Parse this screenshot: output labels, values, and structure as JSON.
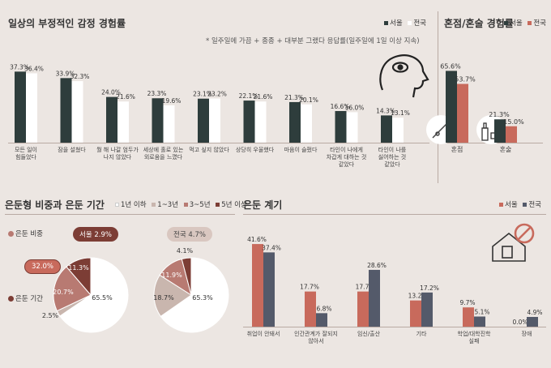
{
  "colors": {
    "dark": "#2e3d3c",
    "white": "#ffffff",
    "red": "#c86a5c",
    "navy": "#545a6a",
    "maroon": "#7c3d35",
    "rose": "#b87a72",
    "beige": "#c9b6ae",
    "tick": "#b9aaa3"
  },
  "icons": [
    "head-icon",
    "needle-icon",
    "bottle-icon",
    "house-icon",
    "ban-icon"
  ],
  "emotion": {
    "title": "일상의 부정적인 감정 경험률",
    "legend": [
      "서울",
      "전국"
    ],
    "note": "* 일주일에 가끔 + 종종 + 대부분 그랬다 응답률(일주일에 1일 이상 지속)"
  },
  "honjeom": {
    "title": "혼점/혼술 경험률",
    "legend": [
      "서울",
      "전국"
    ]
  },
  "hermit": {
    "title": "은둔형 비중과 은둔 기간",
    "legend": [
      "1년 이하",
      "1~3년",
      "3~5년",
      "5년 이상"
    ],
    "label_ratio": "은둔 비중",
    "label_period": "은둔 기간",
    "seoul_bubble": "서울 2.9%",
    "national_bubble": "전국 4.7%",
    "seoul_side": "32.0%"
  },
  "reason": {
    "title": "은둔 계기",
    "legend": [
      "서울",
      "전국"
    ]
  },
  "chart_data": [
    {
      "type": "bar",
      "title": "일상의 부정적인 감정 경험률",
      "categories": [
        "모든 일이\n힘들었다",
        "잠을 설쳤다",
        "뭘 해 나갈 엄두가\n나지 않았다",
        "세상에 홀로 있는\n외로움을 느꼈다",
        "먹고 싶지 않았다",
        "상당히 우울했다",
        "마음이 슬펐다",
        "타인이 나에게\n차갑게 대하는 것\n같았다",
        "타인이 나를\n싫어하는 것\n같았다"
      ],
      "series": [
        {
          "name": "서울",
          "values": [
            37.3,
            33.9,
            24.0,
            23.3,
            23.1,
            22.1,
            21.3,
            16.6,
            14.3
          ]
        },
        {
          "name": "전국",
          "values": [
            36.4,
            32.3,
            21.6,
            19.6,
            23.2,
            21.6,
            20.1,
            16.0,
            13.1
          ]
        }
      ],
      "labels": [
        [
          "37.3%",
          "36.4%"
        ],
        [
          "33.9%",
          "32.3%"
        ],
        [
          "24.0%",
          "21.6%"
        ],
        [
          "23.3%",
          "19.6%"
        ],
        [
          "23.1%",
          "23.2%"
        ],
        [
          "22.1%",
          "21.6%"
        ],
        [
          "21.3%",
          "20.1%"
        ],
        [
          "16.6%",
          "16.0%"
        ],
        [
          "14.3%",
          "13.1%"
        ]
      ]
    },
    {
      "type": "bar",
      "title": "혼점/혼술 경험률",
      "categories": [
        "혼점",
        "혼술"
      ],
      "series": [
        {
          "name": "서울",
          "values": [
            65.6,
            21.3
          ]
        },
        {
          "name": "전국",
          "values": [
            53.7,
            15.0
          ]
        }
      ],
      "labels": [
        [
          "65.6%",
          "53.7%"
        ],
        [
          "21.3%",
          "15.0%"
        ]
      ]
    },
    {
      "type": "pie",
      "title": "은둔 기간",
      "series_name": "서울",
      "slices": [
        {
          "label": "1년 이하",
          "value": 65.5,
          "text": "65.5%"
        },
        {
          "label": "1~3년",
          "value": 2.5,
          "text": "2.5%"
        },
        {
          "label": "3~5년",
          "value": 20.7,
          "text": "20.7%"
        },
        {
          "label": "5년 이상",
          "value": 11.3,
          "text": "11.3%"
        }
      ]
    },
    {
      "type": "pie",
      "title": "은둔 기간",
      "series_name": "전국",
      "slices": [
        {
          "label": "1년 이하",
          "value": 65.3,
          "text": "65.3%"
        },
        {
          "label": "1~3년",
          "value": 18.7,
          "text": "18.7%"
        },
        {
          "label": "3~5년",
          "value": 11.9,
          "text": "11.9%"
        },
        {
          "label": "5년 이상",
          "value": 4.1,
          "text": "4.1%"
        }
      ]
    },
    {
      "type": "bar",
      "title": "은둔 계기",
      "categories": [
        "취업이 안돼서",
        "인간관계가 잘되지\n않아서",
        "임신/출산",
        "기타",
        "학업/대학진학\n실패",
        "장애"
      ],
      "series": [
        {
          "name": "서울",
          "values": [
            41.6,
            17.7,
            17.7,
            13.2,
            9.7,
            0.0
          ]
        },
        {
          "name": "전국",
          "values": [
            37.4,
            6.8,
            28.6,
            17.2,
            5.1,
            4.9
          ]
        }
      ],
      "labels": [
        [
          "41.6%",
          "37.4%"
        ],
        [
          "17.7%",
          "6.8%"
        ],
        [
          "17.7",
          "28.6%"
        ],
        [
          "13.2",
          "17.2%"
        ],
        [
          "9.7%",
          "5.1%"
        ],
        [
          "0.0%",
          "4.9%"
        ]
      ]
    }
  ]
}
